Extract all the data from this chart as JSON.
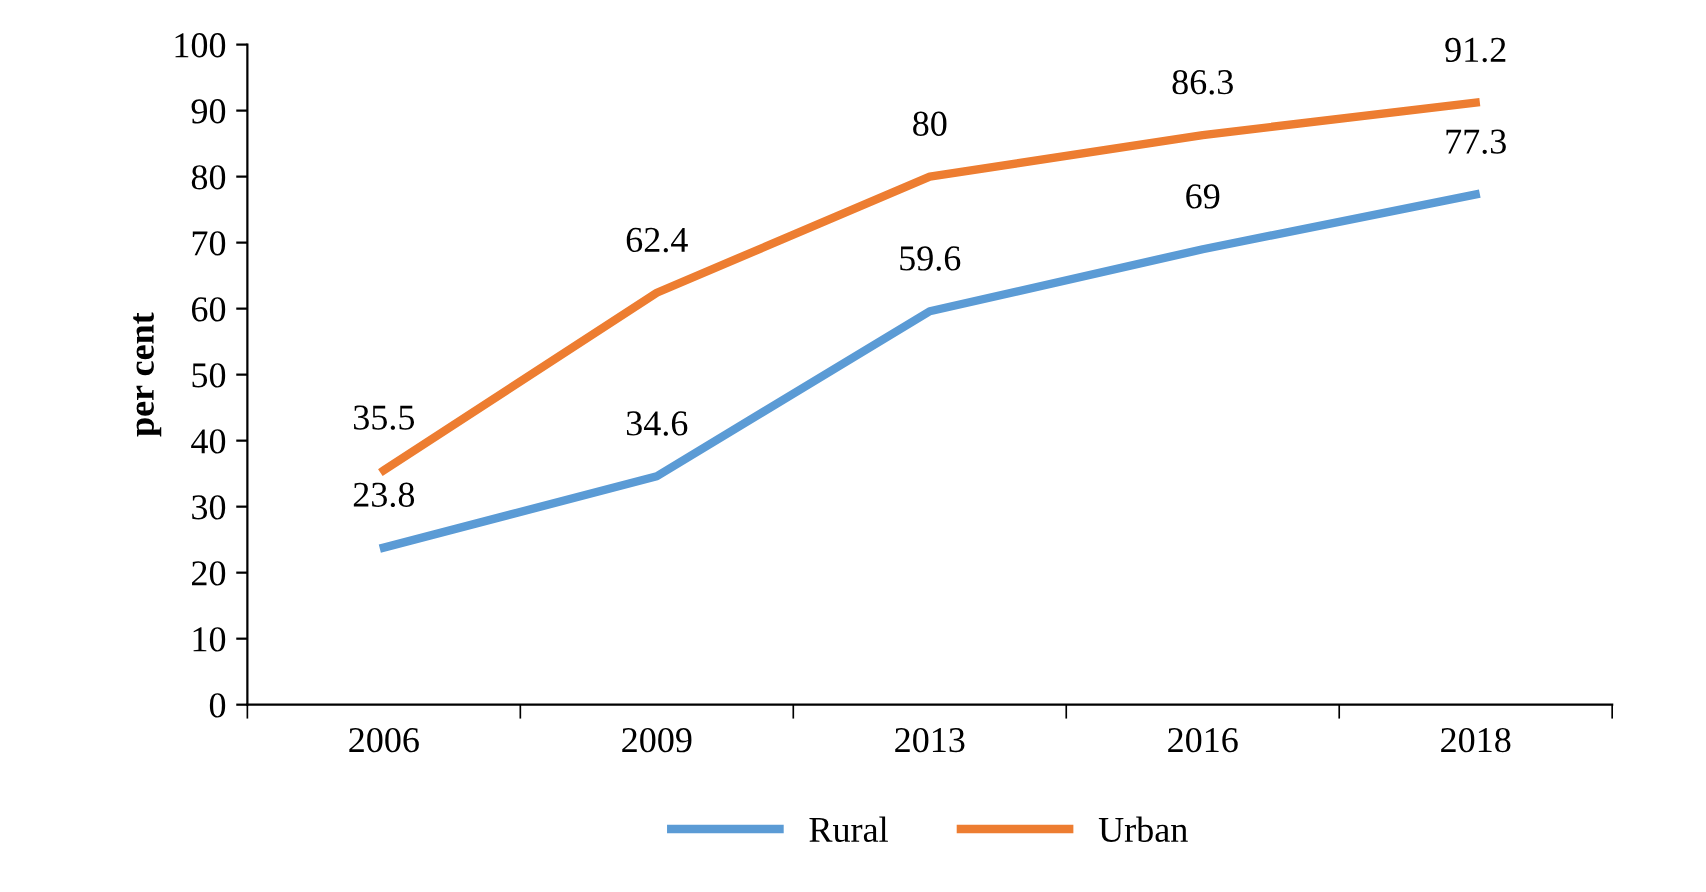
{
  "chart_data": {
    "type": "line",
    "ylabel": "per cent",
    "categories": [
      "2006",
      "2009",
      "2013",
      "2016",
      "2018"
    ],
    "series": [
      {
        "name": "Rural",
        "color": "#5b9bd5",
        "values": [
          23.8,
          34.6,
          59.6,
          69,
          77.3
        ]
      },
      {
        "name": "Urban",
        "color": "#ed7d31",
        "values": [
          35.5,
          62.4,
          80,
          86.3,
          91.2
        ]
      }
    ],
    "ylim": [
      0,
      100
    ],
    "yticks": [
      0,
      10,
      20,
      30,
      40,
      50,
      60,
      70,
      80,
      90,
      100
    ],
    "data_labels": true,
    "legend": "bottom",
    "grid": false,
    "marker": "none",
    "line_style": "solid"
  }
}
